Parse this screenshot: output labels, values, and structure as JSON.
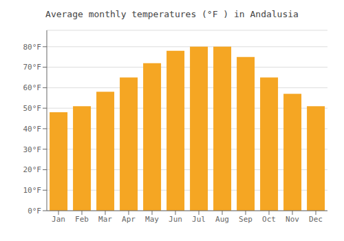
{
  "chart_data": {
    "type": "bar",
    "title": "Average monthly temperatures (°F ) in Andalusia",
    "categories": [
      "Jan",
      "Feb",
      "Mar",
      "Apr",
      "May",
      "Jun",
      "Jul",
      "Aug",
      "Sep",
      "Oct",
      "Nov",
      "Dec"
    ],
    "values": [
      48,
      51,
      58,
      65,
      72,
      78,
      80,
      80,
      75,
      65,
      57,
      51
    ],
    "color": "#F5A623",
    "ylim": [
      0,
      88
    ],
    "yticks": [
      {
        "value": 0,
        "label": "0°F"
      },
      {
        "value": 10,
        "label": "10°F"
      },
      {
        "value": 20,
        "label": "20°F"
      },
      {
        "value": 30,
        "label": "30°F"
      },
      {
        "value": 40,
        "label": "40°F"
      },
      {
        "value": 50,
        "label": "50°F"
      },
      {
        "value": 60,
        "label": "60°F"
      },
      {
        "value": 70,
        "label": "70°F"
      },
      {
        "value": 80,
        "label": "80°F"
      }
    ],
    "grid": true
  }
}
